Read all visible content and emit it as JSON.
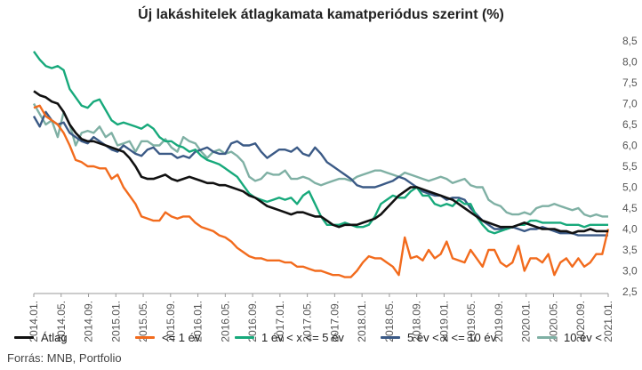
{
  "chart_data": {
    "type": "line",
    "title": "Új lakáshitelek átlagkamata kamatperiódus szerint (%)",
    "source": "Forrás: MNB, Portfolio",
    "xlabel": "",
    "ylabel": "",
    "ylim": [
      2.5,
      8.5
    ],
    "yticks": [
      "8,5",
      "8,0",
      "7,5",
      "7,0",
      "6,5",
      "6,0",
      "5,5",
      "5,0",
      "4,5",
      "4,0",
      "3,5",
      "3,0",
      "2,5"
    ],
    "ytick_values": [
      8.5,
      8.0,
      7.5,
      7.0,
      6.5,
      6.0,
      5.5,
      5.0,
      4.5,
      4.0,
      3.5,
      3.0,
      2.5
    ],
    "xlim": [
      "2014.01.",
      "2021.01."
    ],
    "xticks": [
      "2014.01.",
      "2014.05.",
      "2014.09.",
      "2015.01.",
      "2015.05.",
      "2015.09.",
      "2016.01.",
      "2016.05.",
      "2016.09.",
      "2017.01.",
      "2017.05.",
      "2017.09.",
      "2018.01.",
      "2018.05.",
      "2018.09.",
      "2019.01.",
      "2019.05.",
      "2019.09.",
      "2020.01.",
      "2020.05.",
      "2020.09.",
      "2021.01."
    ],
    "grid": false,
    "legend_position": "bottom",
    "series": [
      {
        "name": "Átlag",
        "color": "#111111",
        "values": [
          7.3,
          7.2,
          7.15,
          7.05,
          7.0,
          6.8,
          6.5,
          6.3,
          6.15,
          6.1,
          6.1,
          6.05,
          6.0,
          5.95,
          5.9,
          5.85,
          5.7,
          5.5,
          5.25,
          5.2,
          5.2,
          5.25,
          5.3,
          5.2,
          5.15,
          5.2,
          5.25,
          5.2,
          5.15,
          5.1,
          5.1,
          5.05,
          5.05,
          5.0,
          4.95,
          4.9,
          4.8,
          4.75,
          4.65,
          4.55,
          4.5,
          4.45,
          4.4,
          4.35,
          4.4,
          4.4,
          4.35,
          4.3,
          4.3,
          4.2,
          4.1,
          4.05,
          4.1,
          4.1,
          4.1,
          4.15,
          4.2,
          4.25,
          4.35,
          4.5,
          4.65,
          4.8,
          4.9,
          5.0,
          5.0,
          4.95,
          4.9,
          4.85,
          4.8,
          4.75,
          4.7,
          4.6,
          4.5,
          4.4,
          4.3,
          4.2,
          4.15,
          4.1,
          4.05,
          4.05,
          4.05,
          4.1,
          4.15,
          4.1,
          4.05,
          4.0,
          4.0,
          4.0,
          3.95,
          3.95,
          3.9,
          3.95,
          3.95,
          4.0,
          3.95,
          3.95,
          3.95
        ]
      },
      {
        "name": "<= 1 év",
        "color": "#f26b1d",
        "values": [
          6.9,
          6.95,
          6.7,
          6.6,
          6.5,
          6.3,
          6.0,
          5.65,
          5.6,
          5.5,
          5.5,
          5.45,
          5.45,
          5.2,
          5.3,
          5.0,
          4.8,
          4.6,
          4.3,
          4.25,
          4.2,
          4.2,
          4.4,
          4.3,
          4.25,
          4.3,
          4.3,
          4.15,
          4.05,
          4.0,
          3.95,
          3.85,
          3.8,
          3.7,
          3.55,
          3.45,
          3.35,
          3.3,
          3.3,
          3.25,
          3.25,
          3.25,
          3.2,
          3.2,
          3.1,
          3.1,
          3.05,
          3.0,
          3.0,
          2.95,
          2.9,
          2.9,
          2.85,
          2.85,
          3.0,
          3.2,
          3.35,
          3.3,
          3.3,
          3.2,
          3.1,
          2.9,
          3.8,
          3.3,
          3.35,
          3.25,
          3.5,
          3.3,
          3.4,
          3.7,
          3.3,
          3.25,
          3.2,
          3.5,
          3.3,
          3.1,
          3.5,
          3.5,
          3.2,
          3.1,
          3.2,
          3.6,
          3.0,
          3.3,
          3.3,
          3.2,
          3.4,
          2.9,
          3.2,
          3.3,
          3.1,
          3.3,
          3.1,
          3.2,
          3.4,
          3.4,
          4.0
        ]
      },
      {
        "name": "1 év < x <= 5 év",
        "color": "#17a97b",
        "values": [
          8.25,
          8.05,
          7.9,
          7.85,
          7.9,
          7.8,
          7.35,
          7.15,
          6.95,
          6.9,
          7.05,
          7.1,
          6.85,
          6.6,
          6.5,
          6.55,
          6.5,
          6.45,
          6.4,
          6.5,
          6.4,
          6.2,
          6.1,
          6.1,
          6.0,
          5.95,
          5.85,
          5.9,
          5.75,
          5.65,
          5.6,
          5.55,
          5.45,
          5.35,
          5.25,
          5.05,
          4.85,
          4.75,
          4.7,
          4.65,
          4.7,
          4.75,
          4.7,
          4.75,
          4.6,
          4.8,
          4.9,
          4.6,
          4.3,
          4.1,
          4.1,
          4.1,
          4.15,
          4.1,
          4.05,
          4.05,
          4.1,
          4.3,
          4.6,
          4.7,
          4.8,
          4.75,
          4.75,
          4.9,
          5.0,
          4.8,
          4.8,
          4.6,
          4.55,
          4.6,
          4.55,
          4.7,
          4.6,
          4.6,
          4.3,
          4.1,
          3.95,
          3.9,
          3.95,
          4.0,
          4.05,
          4.1,
          4.1,
          4.2,
          4.2,
          4.15,
          4.15,
          4.15,
          4.15,
          4.1,
          4.1,
          4.1,
          4.05,
          4.1,
          4.1,
          4.1,
          4.1
        ]
      },
      {
        "name": "5 év < x <= 10 év",
        "color": "#3b5a86",
        "values": [
          6.7,
          6.45,
          6.8,
          6.6,
          6.5,
          6.55,
          6.3,
          6.2,
          6.1,
          6.05,
          6.2,
          6.1,
          6.0,
          5.9,
          5.85,
          6.0,
          5.9,
          5.8,
          5.75,
          5.9,
          5.95,
          5.8,
          5.8,
          5.8,
          5.7,
          5.75,
          5.7,
          5.85,
          5.9,
          5.95,
          5.85,
          5.8,
          5.8,
          6.05,
          6.1,
          6.0,
          6.0,
          6.05,
          5.85,
          5.7,
          5.8,
          5.9,
          5.9,
          5.85,
          5.95,
          5.8,
          5.75,
          5.95,
          5.8,
          5.6,
          5.5,
          5.4,
          5.3,
          5.2,
          5.05,
          5.0,
          5.0,
          5.0,
          5.05,
          5.1,
          5.15,
          5.25,
          5.2,
          5.1,
          5.0,
          4.9,
          4.85,
          4.8,
          4.8,
          4.7,
          4.75,
          4.75,
          4.7,
          4.5,
          4.35,
          4.2,
          4.1,
          4.0,
          4.0,
          4.0,
          4.05,
          4.0,
          3.95,
          4.0,
          4.0,
          4.05,
          4.0,
          3.95,
          3.9,
          3.9,
          3.9,
          3.85,
          3.85,
          3.85,
          3.85,
          3.85,
          3.85
        ]
      },
      {
        "name": "10 év <",
        "color": "#7fb0a4",
        "values": [
          7.0,
          6.75,
          6.5,
          6.6,
          6.2,
          6.8,
          6.5,
          6.0,
          6.3,
          6.35,
          6.3,
          6.45,
          6.2,
          6.3,
          6.0,
          6.05,
          6.1,
          5.85,
          6.1,
          6.1,
          6.0,
          6.0,
          6.15,
          5.95,
          5.85,
          6.2,
          6.1,
          6.05,
          5.85,
          5.7,
          5.85,
          5.9,
          5.8,
          5.85,
          5.75,
          5.6,
          5.25,
          5.15,
          5.2,
          5.35,
          5.3,
          5.3,
          5.4,
          5.2,
          5.2,
          5.25,
          5.2,
          5.1,
          5.05,
          5.1,
          5.15,
          5.2,
          5.2,
          5.15,
          5.25,
          5.3,
          5.35,
          5.4,
          5.4,
          5.35,
          5.3,
          5.25,
          5.35,
          5.3,
          5.25,
          5.2,
          5.15,
          5.2,
          5.25,
          5.2,
          5.1,
          5.15,
          5.2,
          5.05,
          5.0,
          5.0,
          4.7,
          4.6,
          4.55,
          4.4,
          4.35,
          4.35,
          4.4,
          4.35,
          4.5,
          4.55,
          4.55,
          4.6,
          4.55,
          4.5,
          4.45,
          4.5,
          4.35,
          4.3,
          4.35,
          4.3,
          4.3
        ]
      }
    ]
  }
}
